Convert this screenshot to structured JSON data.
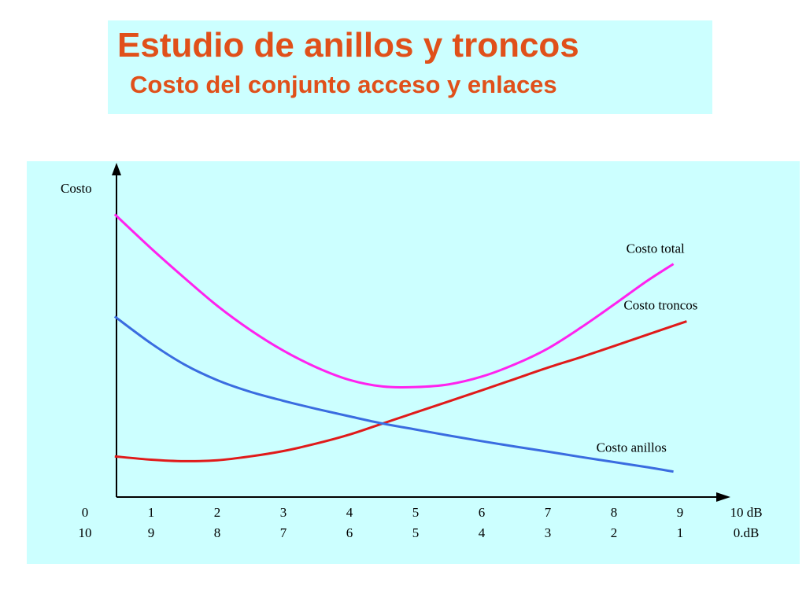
{
  "header": {
    "title": "Estudio de anillos y troncos",
    "subtitle": "Costo del conjunto acceso y enlaces"
  },
  "colors": {
    "title_text": "#e0501a",
    "panel_background": "#ccffff",
    "axis": "#000000"
  },
  "chart_data": {
    "type": "line",
    "ylabel": "Costo",
    "x_ticks_top": [
      "0",
      "1",
      "2",
      "3",
      "4",
      "5",
      "6",
      "7",
      "8",
      "9",
      "10 dB"
    ],
    "x_ticks_bottom": [
      "10",
      "9",
      "8",
      "7",
      "6",
      "5",
      "4",
      "3",
      "2",
      "1",
      "0.dB"
    ],
    "xlim": [
      0,
      10
    ],
    "ylim": [
      0,
      100
    ],
    "y_ticks": false,
    "grid": false,
    "series": [
      {
        "name": "Costo total",
        "color": "#ff22ee",
        "x": [
          0.45,
          1,
          1.5,
          2,
          2.5,
          3,
          3.5,
          4,
          4.5,
          5,
          5.5,
          6,
          6.5,
          7,
          7.5,
          8,
          8.5,
          8.9
        ],
        "y": [
          94.6,
          83.2,
          73.4,
          64.0,
          55.9,
          49.0,
          43.4,
          39.2,
          37.0,
          36.8,
          37.7,
          40.3,
          44.4,
          49.7,
          56.7,
          64.4,
          72.3,
          78.0
        ]
      },
      {
        "name": "Costo troncos",
        "color": "#e01a1a",
        "x": [
          0.45,
          1,
          1.5,
          2,
          2.5,
          3,
          3.5,
          4,
          4.5,
          5,
          5.5,
          6,
          6.5,
          7,
          7.5,
          8,
          8.5,
          9.1
        ],
        "y": [
          13.6,
          12.5,
          12.0,
          12.3,
          13.6,
          15.4,
          17.9,
          20.9,
          24.6,
          28.3,
          32.0,
          35.7,
          39.5,
          43.3,
          46.8,
          50.5,
          54.3,
          58.8
        ]
      },
      {
        "name": "Costo anillos",
        "color": "#3a6ce0",
        "x": [
          0.45,
          1,
          1.5,
          2,
          2.5,
          3,
          3.5,
          4,
          4.5,
          5,
          5.5,
          6,
          6.5,
          7,
          7.5,
          8,
          8.5,
          8.9
        ],
        "y": [
          60.4,
          51.4,
          44.4,
          39.1,
          35.2,
          32.2,
          29.5,
          27.0,
          24.6,
          22.6,
          20.6,
          18.7,
          16.9,
          15.2,
          13.4,
          11.7,
          10.0,
          8.5
        ]
      }
    ]
  }
}
